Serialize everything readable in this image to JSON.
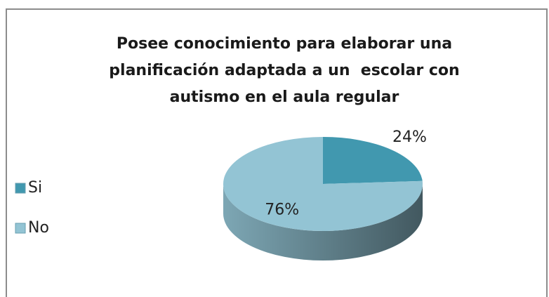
{
  "chart_data": {
    "type": "pie",
    "title": "Posee conocimiento para elaborar una planificación adaptada a un  escolar con autismo en el aula regular",
    "categories": [
      "Si",
      "No"
    ],
    "values": [
      24,
      76
    ],
    "value_labels": [
      "24%",
      "76%"
    ],
    "colors": [
      "#4198af",
      "#93c4d4"
    ],
    "legend": "left"
  }
}
